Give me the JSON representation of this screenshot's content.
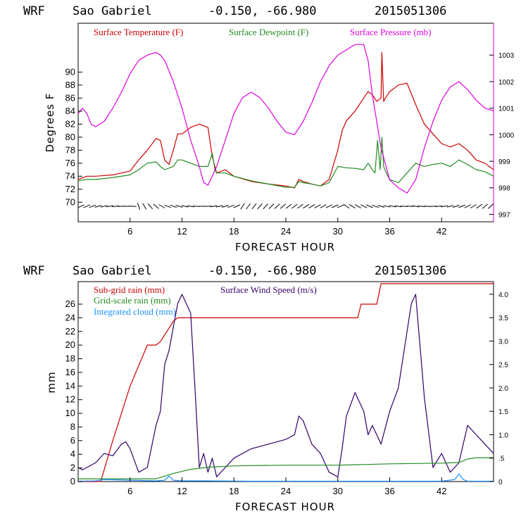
{
  "chart_data": [
    {
      "type": "line",
      "header": {
        "model": "WRF",
        "location": "Sao Gabriel",
        "coords": "-0.150, -66.980",
        "init": "2015051306"
      },
      "xlabel": "FORECAST HOUR",
      "ylabel": "Degrees F",
      "xlim": [
        0,
        48
      ],
      "xticks": [
        6,
        12,
        18,
        24,
        30,
        36,
        42
      ],
      "ylim_left": [
        67,
        97.5
      ],
      "yticks_left": [
        70,
        72,
        74,
        76,
        78,
        80,
        82,
        84,
        86,
        88,
        90
      ],
      "ylim_right": [
        996.72,
        1004.2
      ],
      "yticks_right": [
        997,
        998,
        999,
        1000,
        1001,
        1002,
        1003
      ],
      "legend": [
        "Surface Temperature (F)",
        "Surface Dewpoint (F)",
        "Surface Pressure (mb)"
      ],
      "colors": [
        "#cc0000",
        "#228b22",
        "#dd00dd"
      ],
      "series": [
        {
          "name": "Surface Temperature (F)",
          "axis": "left",
          "x": [
            0,
            1,
            2,
            4,
            6,
            7,
            8,
            9,
            9.5,
            10,
            10.5,
            11,
            11.5,
            12,
            13,
            14,
            15,
            15.5,
            16,
            17,
            18,
            20,
            22,
            24,
            25,
            25.5,
            26,
            27,
            28,
            29,
            30,
            30.5,
            31,
            32,
            33,
            33.5,
            34,
            34.5,
            35,
            35.1,
            35.3,
            35.5,
            36,
            37,
            38,
            39,
            40,
            41,
            42,
            43,
            44,
            45,
            46,
            47,
            48
          ],
          "values": [
            73.5,
            74,
            74,
            74.2,
            74.8,
            76.5,
            78,
            79.8,
            79.5,
            76.5,
            75.8,
            78,
            80.5,
            80.5,
            81.5,
            82,
            81.5,
            77,
            74.5,
            75,
            74,
            73.2,
            72.8,
            72.5,
            72.2,
            73.5,
            73.2,
            72.8,
            72.5,
            73.5,
            78,
            81,
            82.5,
            84,
            86,
            87,
            86.5,
            85.5,
            86,
            93,
            85.5,
            86,
            87,
            88,
            88.3,
            85,
            82,
            80.5,
            79,
            78.5,
            79,
            78,
            76.5,
            76,
            75
          ]
        },
        {
          "name": "Surface Dewpoint (F)",
          "axis": "left",
          "x": [
            0,
            1,
            2,
            4,
            6,
            7,
            8,
            9,
            9.5,
            10,
            11,
            11.5,
            12,
            13,
            14,
            15,
            15.5,
            15.8,
            16,
            17,
            18,
            20,
            22,
            24,
            25,
            25.5,
            26,
            27,
            28,
            29,
            30,
            31,
            32,
            33,
            33.5,
            34,
            34.3,
            34.6,
            34.9,
            35.1,
            35.3,
            35.6,
            36,
            37,
            38,
            39,
            40,
            41,
            42,
            43,
            44,
            45,
            46,
            47,
            48
          ],
          "values": [
            73.3,
            73.5,
            73.5,
            73.8,
            74.2,
            75,
            76,
            76.2,
            75.5,
            75,
            75.5,
            76.5,
            76.5,
            76,
            75.5,
            75.5,
            77.5,
            75,
            74.5,
            74.5,
            74,
            73.3,
            72.8,
            72.3,
            72.3,
            73.2,
            73,
            72.8,
            72.5,
            73,
            75.5,
            75.3,
            75.2,
            75,
            76,
            75,
            74.5,
            79.5,
            75,
            80,
            75.5,
            74.5,
            73.5,
            73,
            74.5,
            76,
            75.5,
            75.8,
            76,
            75.5,
            76.5,
            75.8,
            75,
            74.7,
            74
          ]
        },
        {
          "name": "Surface Pressure (mb)",
          "axis": "right",
          "x": [
            0,
            0.5,
            1,
            1.5,
            2,
            3,
            4,
            5,
            6,
            7,
            8,
            9,
            9.5,
            10,
            11,
            12,
            13,
            14,
            14.5,
            15,
            16,
            17,
            18,
            19,
            20,
            21,
            22,
            23,
            24,
            25,
            26,
            27,
            28,
            29,
            30,
            31,
            32,
            33,
            33.5,
            34,
            35,
            36,
            37,
            38,
            39,
            40,
            41,
            42,
            43,
            44,
            45,
            46,
            47,
            48
          ],
          "values": [
            1000.8,
            1001,
            1000.8,
            1000.4,
            1000.3,
            1000.5,
            1001,
            1001.6,
            1002.3,
            1002.8,
            1003,
            1003.1,
            1003,
            1002.8,
            1002,
            1001,
            999.8,
            998.8,
            998.2,
            998.1,
            998.8,
            999.8,
            1000.8,
            1001.4,
            1001.6,
            1001.4,
            1001,
            1000.5,
            1000.1,
            1000,
            1000.5,
            1001.2,
            1002,
            1002.6,
            1003,
            1003.2,
            1003.4,
            1003.4,
            1002.8,
            1001.5,
            999.5,
            998.3,
            998,
            997.8,
            998.3,
            999.5,
            1000.5,
            1001.3,
            1001.8,
            1002,
            1001.7,
            1001.3,
            1001,
            1000.9
          ]
        }
      ]
    },
    {
      "type": "line",
      "header": {
        "model": "WRF",
        "location": "Sao Gabriel",
        "coords": "-0.150, -66.980",
        "init": "2015051306"
      },
      "xlabel": "FORECAST HOUR",
      "ylabel": "mm",
      "xlim": [
        0,
        48
      ],
      "xticks": [
        6,
        12,
        18,
        24,
        30,
        36,
        42
      ],
      "ylim_left": [
        0,
        29.3
      ],
      "yticks_left": [
        0,
        2,
        4,
        6,
        8,
        10,
        12,
        14,
        16,
        18,
        20,
        22,
        24,
        26
      ],
      "ylim_right": [
        0,
        4.27
      ],
      "yticks_right": [
        "0",
        ".5",
        "1.0",
        "1.5",
        "2.0",
        "2.5",
        "3.0",
        "3.5",
        "4.0"
      ],
      "legend": [
        "Sub-grid rain (mm)",
        "Surface Wind Speed (m/s)",
        "Grid-scale rain (mm)",
        "Integrated cloud (mm)"
      ],
      "colors": [
        "#cc0000",
        "#330066",
        "#228b22",
        "#1e90ff"
      ],
      "series": [
        {
          "name": "Sub-grid rain (mm)",
          "axis": "left",
          "x": [
            0,
            2.6,
            4,
            6,
            8,
            9,
            9.5,
            10,
            10.5,
            11,
            11.5,
            12,
            32.3,
            32.7,
            34.5,
            35,
            48
          ],
          "values": [
            0,
            0,
            6,
            14,
            20,
            20,
            20.5,
            21.5,
            22.5,
            23.5,
            24,
            24,
            24,
            26,
            26,
            29,
            29
          ]
        },
        {
          "name": "Surface Wind Speed (m/s)",
          "axis": "right",
          "x": [
            0,
            0.5,
            1,
            2,
            3,
            4,
            5,
            5.5,
            6,
            7,
            8,
            9,
            9.5,
            10,
            10.5,
            11,
            11.5,
            12,
            13,
            13.5,
            14,
            14.5,
            15,
            15.5,
            16,
            17,
            18,
            20,
            22,
            24,
            25,
            25.5,
            26,
            27,
            28,
            29,
            30,
            30.5,
            31,
            32,
            33,
            33.5,
            34,
            35,
            36,
            37,
            38,
            38.5,
            39,
            40,
            41,
            42,
            43,
            44,
            45,
            46,
            47,
            48
          ],
          "values": [
            0.3,
            0.25,
            0.3,
            0.4,
            0.6,
            0.55,
            0.8,
            0.85,
            0.7,
            0.2,
            0.3,
            1.2,
            1.5,
            2.5,
            2.8,
            3.3,
            3.8,
            4.0,
            3.6,
            2.0,
            0.3,
            0.6,
            0.2,
            0.5,
            0.1,
            0.3,
            0.5,
            0.7,
            0.8,
            0.9,
            1.0,
            1.4,
            1.3,
            0.8,
            0.6,
            0.2,
            0.1,
            0.7,
            1.4,
            1.9,
            1.5,
            1.0,
            1.2,
            0.8,
            1.5,
            2.0,
            3.2,
            3.8,
            4.0,
            1.8,
            0.3,
            0.6,
            0.2,
            0.4,
            1.2,
            1.0,
            0.8,
            0.6
          ]
        },
        {
          "name": "Grid-scale rain (mm)",
          "axis": "left",
          "x": [
            0,
            9,
            11,
            13,
            15,
            18,
            24,
            30,
            33,
            36,
            42,
            44,
            45,
            46,
            48
          ],
          "values": [
            0.4,
            0.4,
            1.2,
            1.8,
            2.1,
            2.3,
            2.4,
            2.4,
            2.5,
            2.6,
            2.7,
            2.8,
            3.3,
            3.5,
            3.5
          ]
        },
        {
          "name": "Integrated cloud (mm)",
          "axis": "left",
          "x": [
            0,
            2,
            3,
            6,
            9,
            10,
            10.5,
            11,
            12,
            15,
            20,
            25,
            30,
            33,
            36,
            40,
            42,
            43.5,
            44,
            44.5,
            45,
            48
          ],
          "values": [
            0.05,
            0.1,
            0.3,
            0.2,
            0.1,
            0.2,
            0.8,
            0.2,
            0.1,
            0.1,
            0.05,
            0.05,
            0.05,
            0.05,
            0.05,
            0.05,
            0.05,
            0.3,
            1.1,
            0.3,
            0.05,
            0.05
          ]
        }
      ]
    }
  ]
}
